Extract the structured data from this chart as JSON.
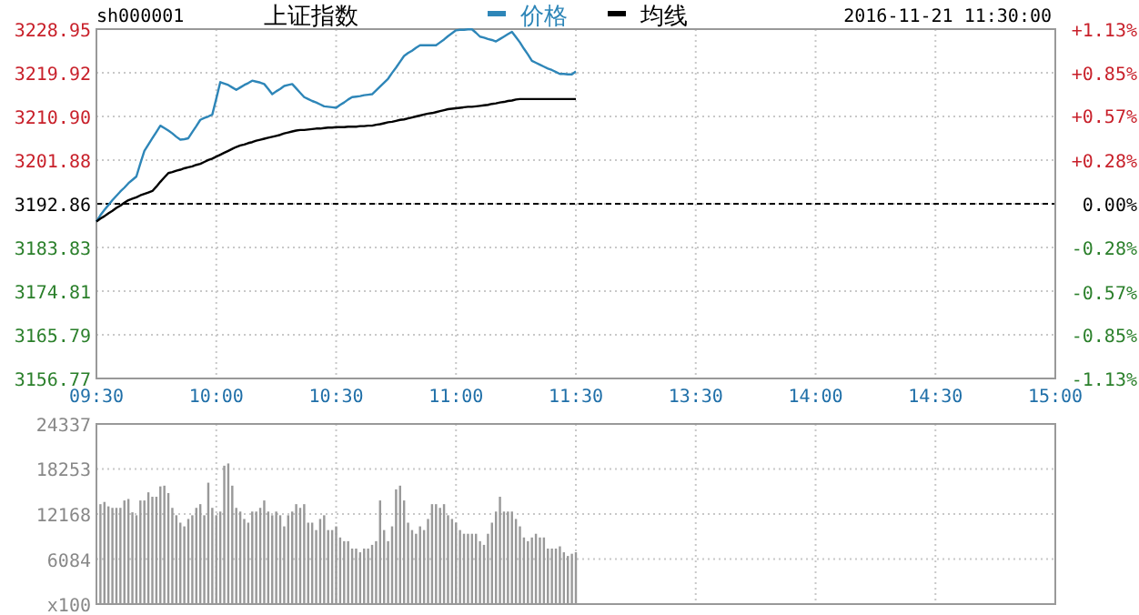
{
  "chart_data": [
    {
      "type": "line",
      "title": "上证指数",
      "annotations": [
        "sh000001",
        "2016-11-21 11:30:00"
      ],
      "legend": "top",
      "grid": true,
      "categories": [
        "09:30",
        null,
        null,
        null,
        null,
        null,
        null,
        null,
        null,
        null,
        null,
        null,
        null,
        null,
        null,
        null,
        null,
        null,
        null,
        null,
        null,
        null,
        null,
        null,
        null,
        null,
        null,
        null,
        null,
        null,
        "10:00",
        null,
        null,
        null,
        null,
        null,
        null,
        null,
        null,
        null,
        null,
        null,
        null,
        null,
        null,
        null,
        null,
        null,
        null,
        null,
        null,
        null,
        null,
        null,
        null,
        null,
        null,
        null,
        null,
        null,
        "10:30",
        null,
        null,
        null,
        null,
        null,
        null,
        null,
        null,
        null,
        null,
        null,
        null,
        null,
        null,
        null,
        null,
        null,
        null,
        null,
        null,
        null,
        null,
        null,
        null,
        null,
        null,
        null,
        null,
        null,
        "11:00",
        null,
        null,
        null,
        null,
        null,
        null,
        null,
        null,
        null,
        null,
        null,
        null,
        null,
        null,
        null,
        null,
        null,
        null,
        null,
        null,
        null,
        null,
        null,
        null,
        null,
        null,
        null,
        null,
        null,
        "11:30",
        null,
        null,
        null,
        null,
        null,
        null,
        null,
        null,
        null,
        null,
        null,
        null,
        null,
        null,
        null,
        null,
        null,
        null,
        null,
        null,
        null,
        null,
        null,
        null,
        null,
        null,
        null,
        null,
        null,
        "13:30",
        null,
        null,
        null,
        null,
        null,
        null,
        null,
        null,
        null,
        null,
        null,
        null,
        null,
        null,
        null,
        null,
        null,
        null,
        null,
        null,
        null,
        null,
        null,
        null,
        null,
        null,
        null,
        null,
        null,
        "14:00",
        null,
        null,
        null,
        null,
        null,
        null,
        null,
        null,
        null,
        null,
        null,
        null,
        null,
        null,
        null,
        null,
        null,
        null,
        null,
        null,
        null,
        null,
        null,
        null,
        null,
        null,
        null,
        null,
        null,
        "14:30",
        null,
        null,
        null,
        null,
        null,
        null,
        null,
        null,
        null,
        null,
        null,
        null,
        null,
        null,
        null,
        null,
        null,
        null,
        null,
        null,
        null,
        null,
        null,
        null,
        null,
        null,
        null,
        null,
        null,
        "15:00"
      ],
      "ylim": [
        3156.77,
        3228.95
      ],
      "yticks": [
        3156.77,
        3165.79,
        3174.81,
        3183.83,
        3192.86,
        3201.88,
        {
          "value": 3210.9,
          "label": "3210.90"
        },
        3219.92,
        3228.95
      ],
      "y2lim": [
        -1.13,
        1.13
      ],
      "y2ticks": [
        {
          "value": -1.13,
          "label": "-1.13%"
        },
        {
          "value": -0.85,
          "label": "-0.85%"
        },
        {
          "value": -0.57,
          "label": "-0.57%"
        },
        {
          "value": -0.28,
          "label": "-0.28%"
        },
        {
          "value": 0,
          "label": "0.00%"
        },
        {
          "value": 0.28,
          "label": "+0.28%"
        },
        {
          "value": 0.57,
          "label": "+0.57%"
        },
        {
          "value": 0.85,
          "label": "+0.85%"
        },
        {
          "value": 1.13,
          "label": "+1.13%"
        }
      ],
      "ref_lines": [
        {
          "axis": "y",
          "value": 3192.86,
          "line_style": "dashed",
          "color": "#000000"
        }
      ],
      "series": [
        {
          "name": "价格",
          "color": "#2e86b8",
          "values": [
            3189.2,
            3190.5,
            3191.6,
            3192.6,
            3193.6,
            3194.5,
            3195.4,
            3196.2,
            3197.1,
            3197.8,
            3198.5,
            3201.2,
            3203.8,
            3205.1,
            3206.4,
            3207.7,
            3209.0,
            3208.5,
            3208.0,
            3207.4,
            3206.7,
            3206.1,
            3206.2,
            3206.4,
            3207.7,
            3208.9,
            3210.2,
            3210.6,
            3210.9,
            3211.3,
            3214.6,
            3218.0,
            3217.7,
            3217.4,
            3216.9,
            3216.4,
            3216.9,
            3217.4,
            3217.8,
            3218.3,
            3218.1,
            3217.9,
            3217.6,
            3216.6,
            3215.5,
            3216.1,
            3216.6,
            3217.2,
            3217.4,
            3217.6,
            3216.7,
            3215.8,
            3214.9,
            3214.5,
            3214.1,
            3213.8,
            3213.4,
            3213.0,
            3212.9,
            3212.8,
            3212.7,
            3213.3,
            3213.8,
            3214.4,
            3214.9,
            3215.0,
            3215.1,
            3215.3,
            3215.4,
            3215.5,
            3216.3,
            3217.1,
            3217.9,
            3218.7,
            3219.9,
            3221.0,
            3222.2,
            3223.4,
            3224.0,
            3224.5,
            3225.1,
            3225.6,
            3225.6,
            3225.6,
            3225.6,
            3225.6,
            3226.2,
            3226.8,
            3227.5,
            3228.1,
            3228.7,
            3228.8,
            3228.8,
            3228.9,
            3228.9,
            3228.2,
            3227.4,
            3227.2,
            3226.9,
            3226.7,
            3226.4,
            3226.9,
            3227.4,
            3227.9,
            3228.4,
            3227.3,
            3226.2,
            3224.9,
            3223.7,
            3222.4,
            3222.0,
            3221.6,
            3221.2,
            3220.8,
            3220.5,
            3220.1,
            3219.7,
            3219.7,
            3219.6,
            3219.6,
            3220.2,
            null,
            null,
            null,
            null,
            null,
            null,
            null,
            null,
            null,
            null,
            null,
            null,
            null,
            null,
            null,
            null,
            null,
            null,
            null,
            null,
            null,
            null,
            null,
            null,
            null,
            null,
            null,
            null,
            null,
            null,
            null,
            null,
            null,
            null,
            null,
            null,
            null,
            null,
            null,
            null,
            null,
            null,
            null,
            null,
            null,
            null,
            null,
            null,
            null,
            null,
            null,
            null,
            null,
            null,
            null,
            null,
            null,
            null,
            null,
            null,
            null,
            null,
            null,
            null,
            null,
            null,
            null,
            null,
            null,
            null,
            null,
            null,
            null,
            null,
            null,
            null,
            null,
            null,
            null,
            null,
            null,
            null,
            null,
            null,
            null,
            null,
            null,
            null,
            null,
            null,
            null,
            null,
            null,
            null,
            null,
            null,
            null,
            null,
            null,
            null,
            null,
            null,
            null,
            null,
            null,
            null,
            null,
            null,
            null,
            null,
            null,
            null,
            null,
            null,
            null,
            null,
            null,
            null,
            null,
            null
          ]
        },
        {
          "name": "均线",
          "color": "#000000",
          "values": [
            3189.2,
            3189.8,
            3190.3,
            3190.9,
            3191.4,
            3192.0,
            3192.5,
            3193.1,
            3193.6,
            3193.9,
            3194.2,
            3194.6,
            3194.9,
            3195.2,
            3195.5,
            3196.4,
            3197.4,
            3198.3,
            3199.2,
            3199.4,
            3199.7,
            3199.9,
            3200.2,
            3200.4,
            3200.6,
            3200.9,
            3201.1,
            3201.5,
            3201.9,
            3202.2,
            3202.6,
            3203.0,
            3203.4,
            3203.8,
            3204.2,
            3204.6,
            3204.9,
            3205.1,
            3205.4,
            3205.6,
            3205.9,
            3206.1,
            3206.3,
            3206.5,
            3206.7,
            3206.9,
            3207.1,
            3207.4,
            3207.6,
            3207.8,
            3208.0,
            3208.1,
            3208.1,
            3208.2,
            3208.3,
            3208.4,
            3208.4,
            3208.5,
            3208.6,
            3208.6,
            3208.7,
            3208.7,
            3208.7,
            3208.8,
            3208.8,
            3208.8,
            3208.9,
            3208.9,
            3209.0,
            3209.0,
            3209.2,
            3209.3,
            3209.5,
            3209.7,
            3209.8,
            3210.0,
            3210.2,
            3210.3,
            3210.5,
            3210.7,
            3210.9,
            3211.1,
            3211.3,
            3211.5,
            3211.6,
            3211.8,
            3212.0,
            3212.2,
            3212.4,
            3212.5,
            3212.6,
            3212.7,
            3212.8,
            3212.9,
            3212.9,
            3213.0,
            3213.1,
            3213.2,
            3213.3,
            3213.5,
            3213.6,
            3213.8,
            3213.9,
            3214.1,
            3214.2,
            3214.4,
            3214.5,
            3214.5,
            3214.5,
            3214.5,
            3214.5,
            3214.5,
            3214.5,
            3214.5,
            3214.5,
            3214.5,
            3214.5,
            3214.5,
            3214.5,
            3214.5,
            3214.5,
            null,
            null,
            null,
            null,
            null,
            null,
            null,
            null,
            null,
            null,
            null,
            null,
            null,
            null,
            null,
            null,
            null,
            null,
            null,
            null,
            null,
            null,
            null,
            null,
            null,
            null,
            null,
            null,
            null,
            null,
            null,
            null,
            null,
            null,
            null,
            null,
            null,
            null,
            null,
            null,
            null,
            null,
            null,
            null,
            null,
            null,
            null,
            null,
            null,
            null,
            null,
            null,
            null,
            null,
            null,
            null,
            null,
            null,
            null,
            null,
            null,
            null,
            null,
            null,
            null,
            null,
            null,
            null,
            null,
            null,
            null,
            null,
            null,
            null,
            null,
            null,
            null,
            null,
            null,
            null,
            null,
            null,
            null,
            null,
            null,
            null,
            null,
            null,
            null,
            null,
            null,
            null,
            null,
            null,
            null,
            null,
            null,
            null,
            null,
            null,
            null,
            null,
            null,
            null,
            null,
            null,
            null,
            null,
            null,
            null,
            null,
            null,
            null,
            null,
            null,
            null,
            null,
            null,
            null,
            null
          ]
        }
      ]
    },
    {
      "type": "bar",
      "grid": true,
      "tick_labels": "y",
      "categories": [
        null,
        null,
        null,
        null,
        null,
        null,
        null,
        null,
        null,
        null,
        null,
        null,
        null,
        null,
        null,
        null,
        null,
        null,
        null,
        null,
        null,
        null,
        null,
        null,
        null,
        null,
        null,
        null,
        null,
        null,
        null,
        null,
        null,
        null,
        null,
        null,
        null,
        null,
        null,
        null,
        null,
        null,
        null,
        null,
        null,
        null,
        null,
        null,
        null,
        null,
        null,
        null,
        null,
        null,
        null,
        null,
        null,
        null,
        null,
        null,
        null,
        null,
        null,
        null,
        null,
        null,
        null,
        null,
        null,
        null,
        null,
        null,
        null,
        null,
        null,
        null,
        null,
        null,
        null,
        null,
        null,
        null,
        null,
        null,
        null,
        null,
        null,
        null,
        null,
        null,
        null,
        null,
        null,
        null,
        null,
        null,
        null,
        null,
        null,
        null,
        null,
        null,
        null,
        null,
        null,
        null,
        null,
        null,
        null,
        null,
        null,
        null,
        null,
        null,
        null,
        null,
        null,
        null,
        null,
        null,
        null,
        null,
        null,
        null,
        null,
        null,
        null,
        null,
        null,
        null,
        null,
        null,
        null,
        null,
        null,
        null,
        null,
        null,
        null,
        null,
        null,
        null,
        null,
        null,
        null,
        null,
        null,
        null,
        null,
        null,
        null,
        null,
        null,
        null,
        null,
        null,
        null,
        null,
        null,
        null,
        null,
        null,
        null,
        null,
        null,
        null,
        null,
        null,
        null,
        null,
        null,
        null,
        null,
        null,
        null,
        null,
        null,
        null,
        null,
        null,
        null,
        null,
        null,
        null,
        null,
        null,
        null,
        null,
        null,
        null,
        null,
        null,
        null,
        null,
        null,
        null,
        null,
        null,
        null,
        null,
        null,
        null,
        null,
        null,
        null,
        null,
        null,
        null,
        null,
        null,
        null,
        null,
        null,
        null,
        null,
        null,
        null,
        null,
        null,
        null,
        null,
        null,
        null,
        null,
        null,
        null,
        null,
        null,
        null,
        null,
        null,
        null,
        null,
        null,
        null,
        null,
        null,
        null,
        null,
        null,
        null
      ],
      "ylim": [
        0,
        24337
      ],
      "yticks": [
        {
          "value": 0,
          "label": "x100"
        },
        6084,
        12168,
        18253,
        24337
      ],
      "series": [
        {
          "color": "#999999",
          "values": [
            null,
            13500,
            13800,
            13200,
            13000,
            13000,
            13000,
            14000,
            14200,
            12400,
            12000,
            14000,
            14000,
            15100,
            14500,
            14500,
            15900,
            16000,
            15000,
            13000,
            12000,
            11000,
            10500,
            11500,
            12000,
            13000,
            13500,
            12000,
            16400,
            13000,
            12000,
            12500,
            18700,
            19000,
            16000,
            13000,
            12500,
            11500,
            11000,
            12500,
            12500,
            13000,
            14000,
            12500,
            12000,
            12500,
            12000,
            10500,
            12000,
            12500,
            13500,
            13000,
            13500,
            11000,
            11000,
            10000,
            11500,
            12000,
            10000,
            10000,
            10500,
            9000,
            8500,
            8500,
            7500,
            7500,
            7000,
            7500,
            7500,
            8000,
            8500,
            14000,
            10000,
            8500,
            10500,
            15500,
            16000,
            14000,
            11000,
            10000,
            9500,
            10500,
            10000,
            11500,
            13500,
            13500,
            13000,
            13500,
            12000,
            11500,
            11000,
            10000,
            9500,
            9500,
            9500,
            9500,
            8500,
            8000,
            9500,
            11000,
            12500,
            14500,
            12500,
            12500,
            12500,
            11500,
            10500,
            9000,
            8500,
            9000,
            9500,
            9000,
            9000,
            7500,
            7500,
            7500,
            7800,
            7000,
            6500,
            6800,
            7000,
            null,
            null,
            null,
            null,
            null,
            null,
            null,
            null,
            null,
            null,
            null,
            null,
            null,
            null,
            null,
            null,
            null,
            null,
            null,
            null,
            null,
            null,
            null,
            null,
            null,
            null,
            null,
            null,
            null,
            null,
            null,
            null,
            null,
            null,
            null,
            null,
            null,
            null,
            null,
            null,
            null,
            null,
            null,
            null,
            null,
            null,
            null,
            null,
            null,
            null,
            null,
            null,
            null,
            null,
            null,
            null,
            null,
            null,
            null,
            null,
            null,
            null,
            null,
            null,
            null,
            null,
            null,
            null,
            null,
            null,
            null,
            null,
            null,
            null,
            null,
            null,
            null,
            null,
            null,
            null,
            null,
            null,
            null,
            null,
            null,
            null,
            null,
            null,
            null,
            null,
            null,
            null,
            null,
            null,
            null,
            null,
            null,
            null,
            null,
            null,
            null,
            null,
            null,
            null,
            null,
            null,
            null,
            null,
            null,
            null,
            null,
            null,
            null,
            null,
            null,
            null,
            null,
            null,
            null,
            null
          ]
        }
      ]
    }
  ]
}
